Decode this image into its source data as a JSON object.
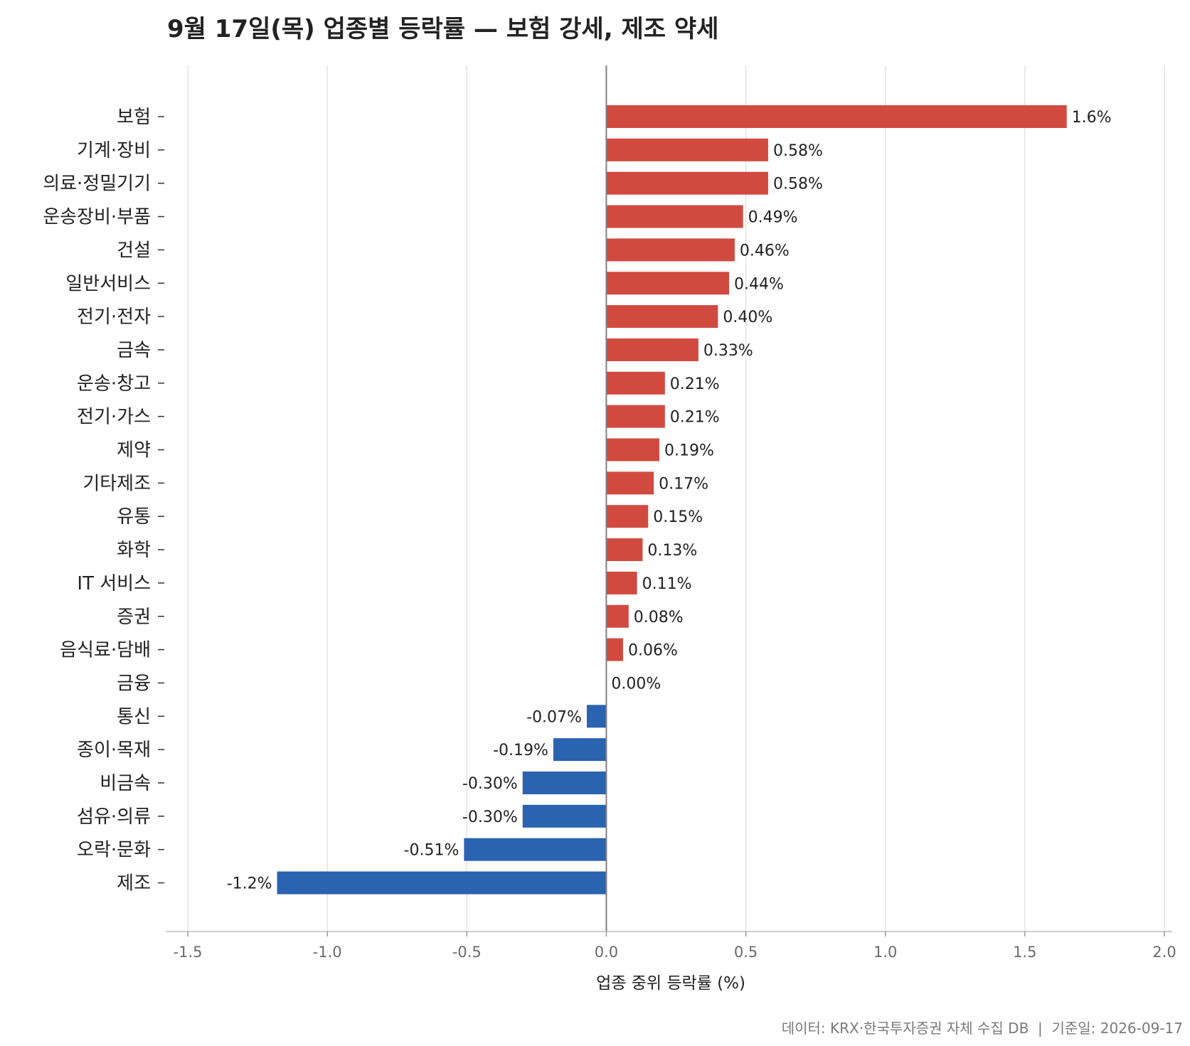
{
  "chart_data": {
    "type": "bar",
    "orientation": "horizontal",
    "title": "9월 17일(목) 업종별 등락률 — 보험 강세, 제조 약세",
    "xlabel": "업종 중위 등락률 (%)",
    "ylabel": "",
    "xlim": [
      -1.5,
      2.0
    ],
    "xticks": [
      -1.5,
      -1.0,
      -0.5,
      0.0,
      0.5,
      1.0,
      1.5,
      2.0
    ],
    "xtick_labels": [
      "-1.5",
      "-1.0",
      "-0.5",
      "0.0",
      "0.5",
      "1.0",
      "1.5",
      "2.0"
    ],
    "grid": "vertical",
    "legend": "none",
    "colors": {
      "positive": "#d14a40",
      "negative": "#2a63b0",
      "zero_line": "#808080"
    },
    "categories": [
      "보험",
      "기계·장비",
      "의료·정밀기기",
      "운송장비·부품",
      "건설",
      "일반서비스",
      "전기·전자",
      "금속",
      "운송·창고",
      "전기·가스",
      "제약",
      "기타제조",
      "유통",
      "화학",
      "IT 서비스",
      "증권",
      "음식료·담배",
      "금융",
      "통신",
      "종이·목재",
      "비금속",
      "섬유·의류",
      "오락·문화",
      "제조"
    ],
    "values": [
      1.65,
      0.58,
      0.58,
      0.49,
      0.46,
      0.44,
      0.4,
      0.33,
      0.21,
      0.21,
      0.19,
      0.17,
      0.15,
      0.13,
      0.11,
      0.08,
      0.06,
      0.0,
      -0.07,
      -0.19,
      -0.3,
      -0.3,
      -0.51,
      -1.18
    ],
    "value_labels": [
      "1.6%",
      "0.58%",
      "0.58%",
      "0.49%",
      "0.46%",
      "0.44%",
      "0.40%",
      "0.33%",
      "0.21%",
      "0.21%",
      "0.19%",
      "0.17%",
      "0.15%",
      "0.13%",
      "0.11%",
      "0.08%",
      "0.06%",
      "0.00%",
      "-0.07%",
      "-0.19%",
      "-0.30%",
      "-0.30%",
      "-0.51%",
      "-1.2%"
    ]
  },
  "footer": {
    "source": "데이터: KRX·한국투자증권 자체 수집 DB  |  기준일: 2026-09-17"
  }
}
